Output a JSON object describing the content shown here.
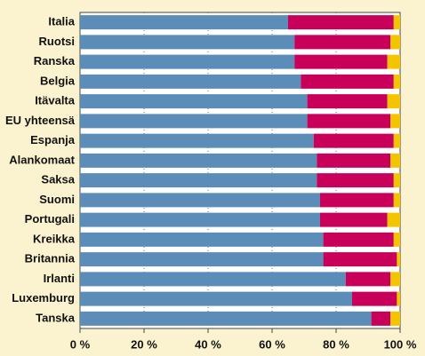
{
  "chart_data": {
    "type": "stacked_barh",
    "categories": [
      "Italia",
      "Ruotsi",
      "Ranska",
      "Belgia",
      "Itävalta",
      "EU yhteensä",
      "Espanja",
      "Alankomaat",
      "Saksa",
      "Suomi",
      "Portugali",
      "Kreikka",
      "Britannia",
      "Irlanti",
      "Luxemburg",
      "Tanska"
    ],
    "series": [
      {
        "color": "#5b8db8",
        "values": [
          65,
          67,
          67,
          69,
          71,
          71,
          73,
          74,
          74,
          75,
          75,
          76,
          76,
          83,
          85,
          91
        ]
      },
      {
        "color": "#c8005a",
        "values": [
          33,
          30,
          29,
          29,
          25,
          26,
          25,
          23,
          24,
          23,
          21,
          22,
          23,
          14,
          14,
          6
        ]
      },
      {
        "color": "#f5c400",
        "values": [
          2,
          3,
          4,
          2,
          4,
          3,
          2,
          3,
          2,
          2,
          4,
          2,
          1,
          3,
          1,
          3
        ]
      }
    ],
    "xlim": [
      0,
      100
    ],
    "xticks": [
      {
        "value": 0,
        "label": "0 %"
      },
      {
        "value": 20,
        "label": "20 %"
      },
      {
        "value": 40,
        "label": "40 %"
      },
      {
        "value": 60,
        "label": "60 %"
      },
      {
        "value": 80,
        "label": "80 %"
      },
      {
        "value": 100,
        "label": "100 %"
      }
    ],
    "grid": true
  }
}
